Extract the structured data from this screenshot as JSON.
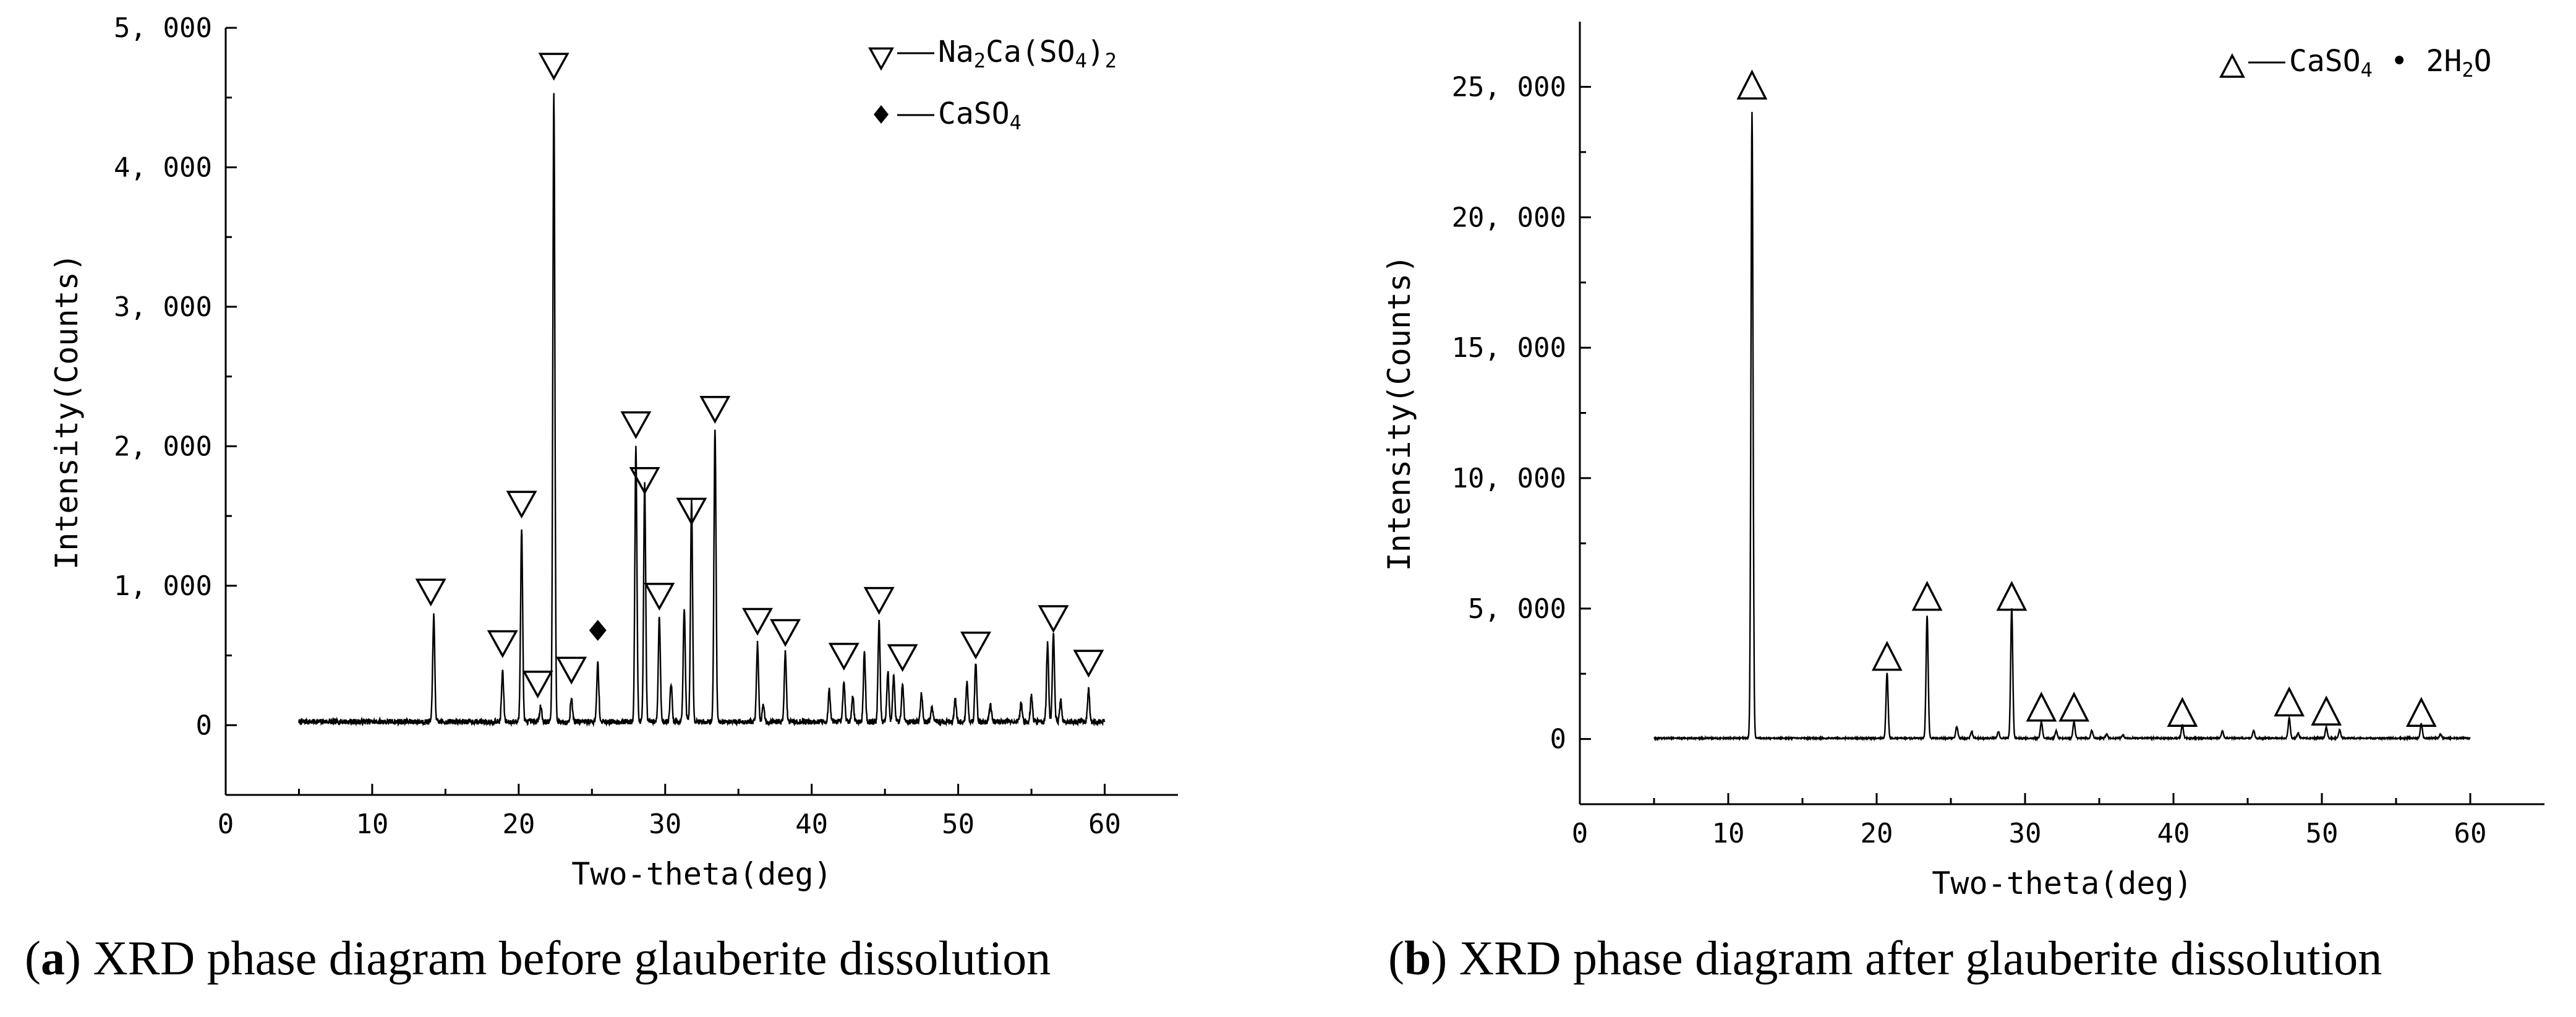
{
  "chart_data": [
    {
      "type": "line",
      "panel": "a",
      "xlabel": "Two-theta(deg)",
      "ylabel": "Intensity(Counts)",
      "xlim": [
        0,
        65
      ],
      "ylim": [
        -500,
        5000
      ],
      "xticks": [
        0,
        10,
        20,
        30,
        40,
        50,
        60
      ],
      "xtick_labels": [
        "0",
        "10",
        "20",
        "30",
        "40",
        "50",
        "60"
      ],
      "yticks": [
        0,
        1000,
        2000,
        3000,
        4000,
        5000
      ],
      "ytick_labels": [
        "0",
        "1, 000",
        "2, 000",
        "3, 000",
        "4, 000",
        "5, 000"
      ],
      "x_range": [
        5,
        60
      ],
      "baseline": 25,
      "noise": 20,
      "peaks": [
        {
          "x": 14.2,
          "y": 760
        },
        {
          "x": 18.9,
          "y": 360
        },
        {
          "x": 20.2,
          "y": 1380
        },
        {
          "x": 21.5,
          "y": 120
        },
        {
          "x": 22.4,
          "y": 4500
        },
        {
          "x": 23.6,
          "y": 170
        },
        {
          "x": 25.4,
          "y": 420
        },
        {
          "x": 28.0,
          "y": 1960
        },
        {
          "x": 28.6,
          "y": 1700
        },
        {
          "x": 29.6,
          "y": 750
        },
        {
          "x": 30.4,
          "y": 280
        },
        {
          "x": 31.3,
          "y": 820
        },
        {
          "x": 31.8,
          "y": 1580
        },
        {
          "x": 33.4,
          "y": 2110
        },
        {
          "x": 36.3,
          "y": 560
        },
        {
          "x": 36.7,
          "y": 120
        },
        {
          "x": 38.2,
          "y": 500
        },
        {
          "x": 41.2,
          "y": 230
        },
        {
          "x": 42.2,
          "y": 290
        },
        {
          "x": 42.8,
          "y": 180
        },
        {
          "x": 43.6,
          "y": 500
        },
        {
          "x": 44.6,
          "y": 710
        },
        {
          "x": 45.2,
          "y": 360
        },
        {
          "x": 45.6,
          "y": 330
        },
        {
          "x": 46.2,
          "y": 280
        },
        {
          "x": 47.5,
          "y": 200
        },
        {
          "x": 48.2,
          "y": 110
        },
        {
          "x": 49.8,
          "y": 160
        },
        {
          "x": 50.6,
          "y": 280
        },
        {
          "x": 51.2,
          "y": 420
        },
        {
          "x": 52.2,
          "y": 130
        },
        {
          "x": 54.3,
          "y": 140
        },
        {
          "x": 55.0,
          "y": 190
        },
        {
          "x": 56.1,
          "y": 560
        },
        {
          "x": 56.5,
          "y": 640
        },
        {
          "x": 57.0,
          "y": 150
        },
        {
          "x": 58.9,
          "y": 230
        }
      ],
      "markers": [
        {
          "x": 14.0,
          "y": 960,
          "phase": "Na2Ca(SO4)2"
        },
        {
          "x": 18.9,
          "y": 590,
          "phase": "Na2Ca(SO4)2"
        },
        {
          "x": 20.2,
          "y": 1590,
          "phase": "Na2Ca(SO4)2"
        },
        {
          "x": 21.3,
          "y": 300,
          "phase": "Na2Ca(SO4)2"
        },
        {
          "x": 22.4,
          "y": 4730,
          "phase": "Na2Ca(SO4)2"
        },
        {
          "x": 23.6,
          "y": 400,
          "phase": "Na2Ca(SO4)2"
        },
        {
          "x": 25.4,
          "y": 680,
          "phase": "CaSO4"
        },
        {
          "x": 28.0,
          "y": 2160,
          "phase": "Na2Ca(SO4)2"
        },
        {
          "x": 28.6,
          "y": 1760,
          "phase": "Na2Ca(SO4)2"
        },
        {
          "x": 29.6,
          "y": 930,
          "phase": "Na2Ca(SO4)2"
        },
        {
          "x": 31.8,
          "y": 1540,
          "phase": "Na2Ca(SO4)2"
        },
        {
          "x": 33.4,
          "y": 2270,
          "phase": "Na2Ca(SO4)2"
        },
        {
          "x": 36.3,
          "y": 750,
          "phase": "Na2Ca(SO4)2"
        },
        {
          "x": 38.2,
          "y": 670,
          "phase": "Na2Ca(SO4)2"
        },
        {
          "x": 42.2,
          "y": 500,
          "phase": "Na2Ca(SO4)2"
        },
        {
          "x": 44.6,
          "y": 900,
          "phase": "Na2Ca(SO4)2"
        },
        {
          "x": 46.2,
          "y": 490,
          "phase": "Na2Ca(SO4)2"
        },
        {
          "x": 51.2,
          "y": 580,
          "phase": "Na2Ca(SO4)2"
        },
        {
          "x": 56.5,
          "y": 770,
          "phase": "Na2Ca(SO4)2"
        },
        {
          "x": 58.9,
          "y": 450,
          "phase": "Na2Ca(SO4)2"
        }
      ],
      "legend": [
        {
          "symbol": "∇",
          "prefix": "—Na",
          "parts": [
            {
              "t": "Na"
            },
            {
              "t": "2",
              "sub": true
            },
            {
              "t": "Ca(SO"
            },
            {
              "t": "4",
              "sub": true
            },
            {
              "t": ")"
            },
            {
              "t": "2",
              "sub": true
            }
          ],
          "label": "Na2Ca(SO4)2"
        },
        {
          "symbol": "◆",
          "parts": [
            {
              "t": "CaSO"
            },
            {
              "t": "4",
              "sub": true
            }
          ],
          "label": "CaSO4"
        }
      ],
      "legend_position": "top-right",
      "caption_letter": "a",
      "caption_text": " XRD phase diagram before glauberite dissolution"
    },
    {
      "type": "line",
      "panel": "b",
      "xlabel": "Two-theta(deg)",
      "ylabel": "Intensity(Counts)",
      "xlim": [
        0,
        65
      ],
      "ylim": [
        -2500,
        27500
      ],
      "xticks": [
        0,
        10,
        20,
        30,
        40,
        50,
        60
      ],
      "xtick_labels": [
        "0",
        "10",
        "20",
        "30",
        "40",
        "50",
        "60"
      ],
      "yticks": [
        0,
        5000,
        10000,
        15000,
        20000,
        25000
      ],
      "ytick_labels": [
        "0",
        "5, 000",
        "10, 000",
        "15, 000",
        "20, 000",
        "25, 000"
      ],
      "x_range": [
        5,
        60
      ],
      "baseline": 30,
      "noise": 25,
      "peaks": [
        {
          "x": 11.6,
          "y": 24000
        },
        {
          "x": 20.7,
          "y": 2500
        },
        {
          "x": 23.4,
          "y": 4700
        },
        {
          "x": 25.4,
          "y": 450
        },
        {
          "x": 26.4,
          "y": 250
        },
        {
          "x": 28.2,
          "y": 250
        },
        {
          "x": 29.1,
          "y": 5000
        },
        {
          "x": 31.1,
          "y": 620
        },
        {
          "x": 32.1,
          "y": 280
        },
        {
          "x": 33.3,
          "y": 640
        },
        {
          "x": 34.5,
          "y": 300
        },
        {
          "x": 35.5,
          "y": 150
        },
        {
          "x": 36.6,
          "y": 120
        },
        {
          "x": 40.6,
          "y": 520
        },
        {
          "x": 43.3,
          "y": 280
        },
        {
          "x": 45.4,
          "y": 300
        },
        {
          "x": 47.8,
          "y": 780
        },
        {
          "x": 48.4,
          "y": 200
        },
        {
          "x": 50.3,
          "y": 420
        },
        {
          "x": 51.2,
          "y": 300
        },
        {
          "x": 56.7,
          "y": 560
        },
        {
          "x": 58.0,
          "y": 150
        }
      ],
      "markers": [
        {
          "x": 11.6,
          "y": 25000,
          "phase": "CaSO4·2H2O"
        },
        {
          "x": 20.7,
          "y": 3100,
          "phase": "CaSO4·2H2O"
        },
        {
          "x": 23.4,
          "y": 5400,
          "phase": "CaSO4·2H2O"
        },
        {
          "x": 29.1,
          "y": 5400,
          "phase": "CaSO4·2H2O"
        },
        {
          "x": 31.1,
          "y": 1150,
          "phase": "CaSO4·2H2O"
        },
        {
          "x": 33.3,
          "y": 1150,
          "phase": "CaSO4·2H2O"
        },
        {
          "x": 40.6,
          "y": 950,
          "phase": "CaSO4·2H2O"
        },
        {
          "x": 47.8,
          "y": 1350,
          "phase": "CaSO4·2H2O"
        },
        {
          "x": 50.3,
          "y": 1000,
          "phase": "CaSO4·2H2O"
        },
        {
          "x": 56.7,
          "y": 950,
          "phase": "CaSO4·2H2O"
        }
      ],
      "legend": [
        {
          "symbol": "Δ",
          "parts": [
            {
              "t": "CaSO"
            },
            {
              "t": "4",
              "sub": true
            },
            {
              "t": " • 2H"
            },
            {
              "t": "2",
              "sub": true
            },
            {
              "t": "O"
            }
          ],
          "label": "CaSO4 • 2H2O"
        }
      ],
      "legend_position": "top-right",
      "caption_letter": "b",
      "caption_text": " XRD phase diagram after glauberite dissolution"
    }
  ],
  "colors": {
    "ink": "#000000",
    "background": "#ffffff"
  }
}
